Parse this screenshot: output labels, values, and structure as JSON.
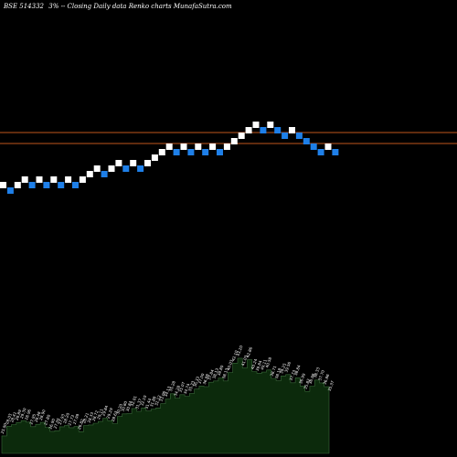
{
  "header": {
    "ticker": "BSE 514332",
    "box_size": "3%",
    "description": "-- Closing Daily data Renko charts MunafaSutra.com"
  },
  "colors": {
    "background": "#000000",
    "up_brick": "#ffffff",
    "down_brick": "#1e7fe8",
    "reference_line": "#c0561c",
    "volume_fill": "#0c2a0c",
    "volume_outline": "#3a6a3a",
    "volume_label": "#ffffff"
  },
  "chart_data": {
    "type": "renko",
    "box_size_percent": 3,
    "bricks": [
      "up",
      "down",
      "up",
      "up",
      "down",
      "up",
      "down",
      "up",
      "down",
      "up",
      "down",
      "up",
      "up",
      "up",
      "down",
      "up",
      "up",
      "down",
      "up",
      "down",
      "up",
      "up",
      "up",
      "up",
      "down",
      "up",
      "down",
      "up",
      "down",
      "up",
      "down",
      "up",
      "up",
      "up",
      "up",
      "up",
      "down",
      "up",
      "down",
      "down",
      "up",
      "down",
      "down",
      "down",
      "down",
      "up",
      "down"
    ],
    "reference_lines": [
      "upper",
      "lower"
    ],
    "volume_labels": [
      "25.90",
      "28.03",
      "28.41",
      "28.89",
      "29.30",
      "28.96",
      "27.95",
      "28.48",
      "28.90",
      "27.80",
      "26.90",
      "27.05",
      "27.93",
      "28.20",
      "27.73",
      "27.99",
      "26.82",
      "28.21",
      "28.33",
      "28.72",
      "29.11",
      "29.84",
      "29.29",
      "28.63",
      "30.20",
      "30.80",
      "30.84",
      "32.01",
      "31.37",
      "32.10",
      "31.44",
      "31.88",
      "32.12",
      "33.06",
      "34.13",
      "35.28",
      "34.28",
      "35.07",
      "34.74",
      "35.33",
      "36.33",
      "37.00",
      "36.88",
      "37.84",
      "38.13",
      "38.80",
      "38.13",
      "40.03",
      "42.10",
      "43.20",
      "41.03",
      "42.86",
      "40.24",
      "39.84",
      "40.11",
      "40.58",
      "38.71",
      "38.18",
      "39.25",
      "39.56",
      "37.73",
      "38.84",
      "36.99",
      "35.82",
      "36.98",
      "38.33",
      "37.70",
      "36.86",
      "35.37"
    ]
  }
}
